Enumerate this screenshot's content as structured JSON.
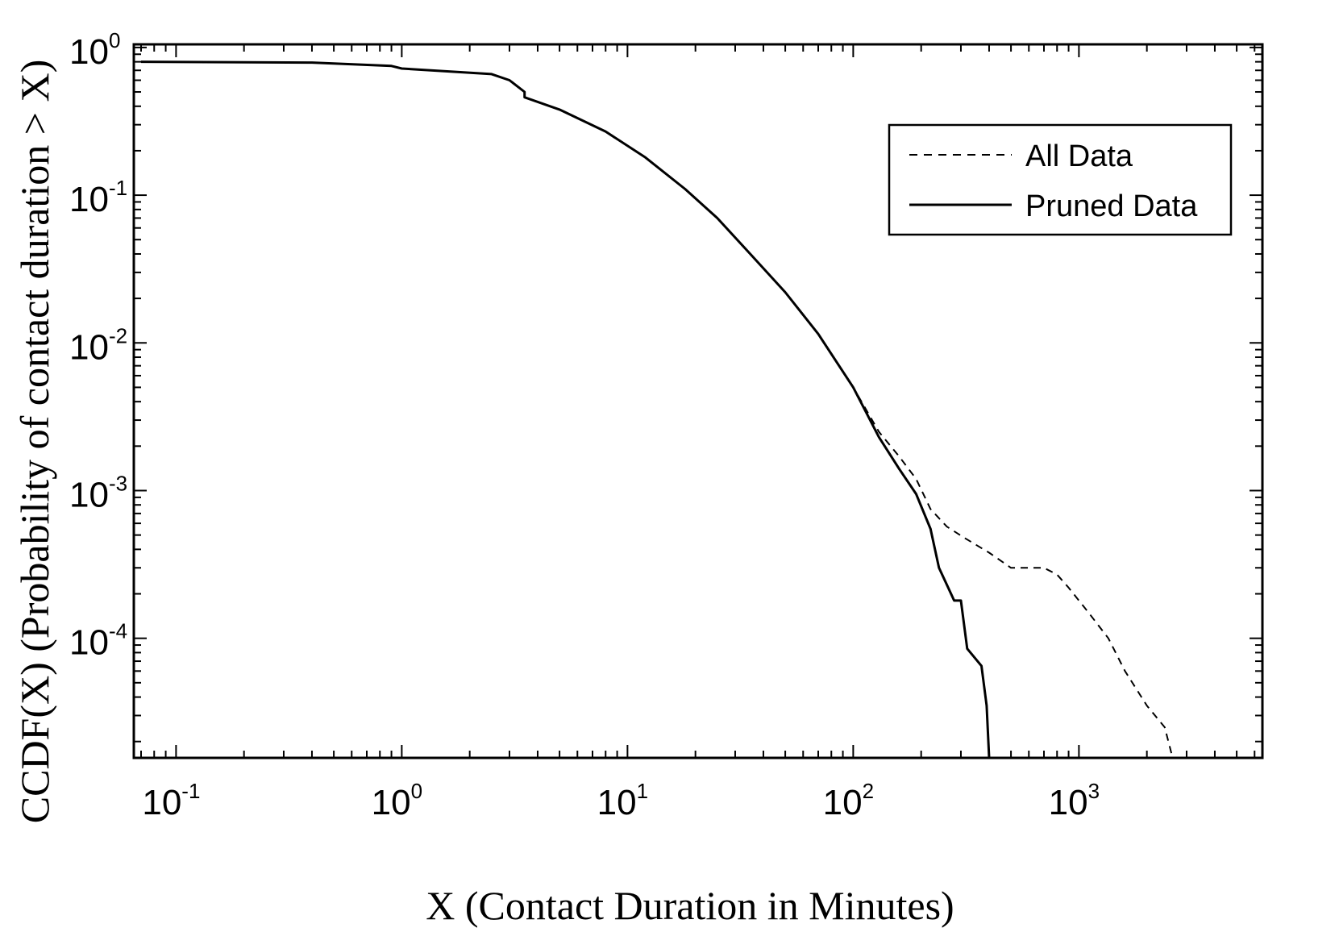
{
  "chart_data": {
    "type": "line",
    "title": "",
    "xlabel": "X (Contact Duration in Minutes)",
    "ylabel": "CCDF(X) (Probability of contact duration > X)",
    "xscale": "log",
    "yscale": "log",
    "xlim": [
      0.065,
      6500
    ],
    "ylim": [
      1.55e-05,
      1.05
    ],
    "x_tick_labels": [
      {
        "base": "10",
        "exp": "-1",
        "value": 0.1
      },
      {
        "base": "10",
        "exp": "0",
        "value": 1
      },
      {
        "base": "10",
        "exp": "1",
        "value": 10
      },
      {
        "base": "10",
        "exp": "2",
        "value": 100
      },
      {
        "base": "10",
        "exp": "3",
        "value": 1000
      }
    ],
    "y_tick_labels": [
      {
        "base": "10",
        "exp": "0",
        "value": 1
      },
      {
        "base": "10",
        "exp": "-1",
        "value": 0.1
      },
      {
        "base": "10",
        "exp": "-2",
        "value": 0.01
      },
      {
        "base": "10",
        "exp": "-3",
        "value": 0.001
      },
      {
        "base": "10",
        "exp": "-4",
        "value": 0.0001
      }
    ],
    "grid": false,
    "legend_position": "top-right",
    "series": [
      {
        "name": "All Data",
        "style": "dashed",
        "color": "#000000",
        "x": [
          0.07,
          0.4,
          0.9,
          1.0,
          2.5,
          3.0,
          3.5,
          3.5,
          5,
          8,
          12,
          18,
          25,
          35,
          50,
          70,
          100,
          130,
          160,
          190,
          220,
          260,
          310,
          400,
          500,
          700,
          800,
          900,
          1100,
          1350,
          1600,
          2000,
          2400,
          2600
        ],
        "y": [
          0.8,
          0.79,
          0.75,
          0.72,
          0.66,
          0.6,
          0.5,
          0.46,
          0.38,
          0.27,
          0.18,
          0.11,
          0.07,
          0.04,
          0.022,
          0.0115,
          0.005,
          0.0025,
          0.0017,
          0.0012,
          0.00075,
          0.00057,
          0.00048,
          0.00038,
          0.0003,
          0.0003,
          0.00027,
          0.00022,
          0.00015,
          0.0001,
          6e-05,
          3.5e-05,
          2.5e-05,
          1.55e-05
        ]
      },
      {
        "name": "Pruned Data",
        "style": "solid",
        "color": "#000000",
        "x": [
          0.07,
          0.4,
          0.9,
          1.0,
          2.5,
          3.0,
          3.5,
          3.5,
          5,
          8,
          12,
          18,
          25,
          35,
          50,
          70,
          100,
          130,
          160,
          190,
          220,
          240,
          260,
          280,
          300,
          320,
          370,
          390,
          400
        ],
        "y": [
          0.8,
          0.79,
          0.75,
          0.72,
          0.66,
          0.6,
          0.5,
          0.46,
          0.38,
          0.27,
          0.18,
          0.11,
          0.07,
          0.04,
          0.022,
          0.0115,
          0.005,
          0.0023,
          0.0014,
          0.00095,
          0.00055,
          0.0003,
          0.00023,
          0.00018,
          0.00018,
          8.5e-05,
          6.5e-05,
          3.5e-05,
          1.55e-05
        ]
      }
    ]
  }
}
